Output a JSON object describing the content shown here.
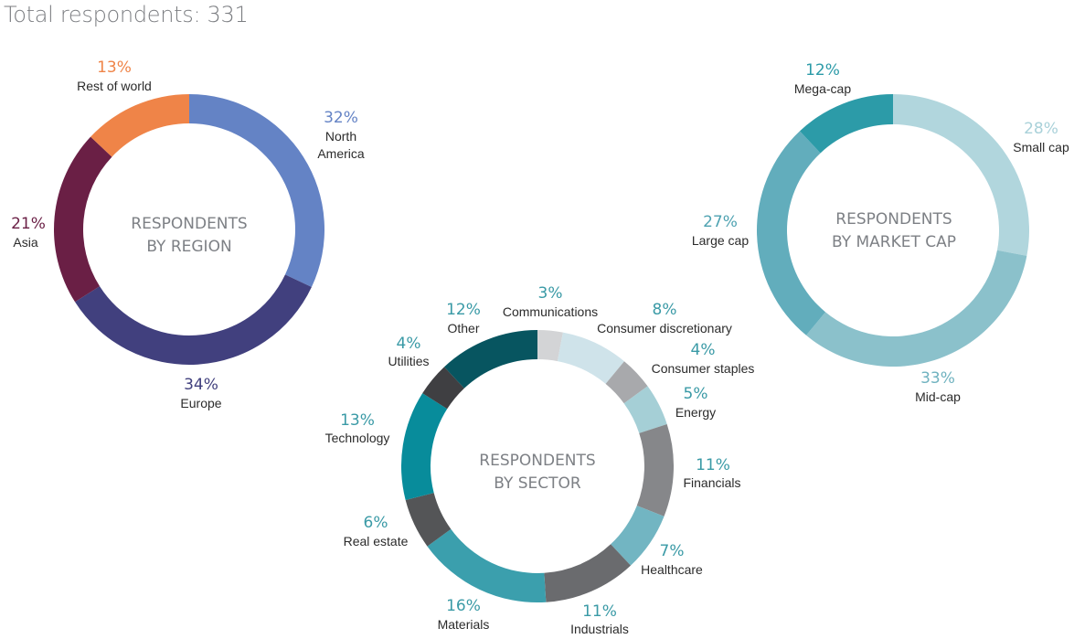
{
  "header": {
    "total_label": "Total respondents: 331"
  },
  "chart_data": [
    {
      "type": "pie",
      "title": "RESPONDENTS BY REGION",
      "title_lines": [
        "RESPONDENTS",
        "BY REGION"
      ],
      "slices": [
        {
          "label": "North America",
          "label_lines": [
            "North",
            "America"
          ],
          "value": 32,
          "value_label": "32%",
          "color": "#6483c5",
          "label_color": "#6483c5"
        },
        {
          "label": "Europe",
          "label_lines": [
            "Europe"
          ],
          "value": 34,
          "value_label": "34%",
          "color": "#41407e",
          "label_color": "#41407e"
        },
        {
          "label": "Asia",
          "label_lines": [
            "Asia"
          ],
          "value": 21,
          "value_label": "21%",
          "color": "#6a1f45",
          "label_color": "#6a1f45"
        },
        {
          "label": "Rest of world",
          "label_lines": [
            "Rest of world"
          ],
          "value": 13,
          "value_label": "13%",
          "color": "#ef8448",
          "label_color": "#ef8448"
        }
      ]
    },
    {
      "type": "pie",
      "title": "RESPONDENTS BY SECTOR",
      "title_lines": [
        "RESPONDENTS",
        "BY SECTOR"
      ],
      "slices": [
        {
          "label": "Communications",
          "label_lines": [
            "Communications"
          ],
          "value": 3,
          "value_label": "3%",
          "color": "#d3d4d6",
          "label_color": "#3a9aa6"
        },
        {
          "label": "Consumer discretionary",
          "label_lines": [
            "Consumer discretionary"
          ],
          "value": 8,
          "value_label": "8%",
          "color": "#cfe3ea",
          "label_color": "#3a9aa6"
        },
        {
          "label": "Consumer staples",
          "label_lines": [
            "Consumer staples"
          ],
          "value": 4,
          "value_label": "4%",
          "color": "#a8a9ac",
          "label_color": "#3a9aa6"
        },
        {
          "label": "Energy",
          "label_lines": [
            "Energy"
          ],
          "value": 5,
          "value_label": "5%",
          "color": "#a5cfd6",
          "label_color": "#3a9aa6"
        },
        {
          "label": "Financials",
          "label_lines": [
            "Financials"
          ],
          "value": 11,
          "value_label": "11%",
          "color": "#86878a",
          "label_color": "#3a9aa6"
        },
        {
          "label": "Healthcare",
          "label_lines": [
            "Healthcare"
          ],
          "value": 7,
          "value_label": "7%",
          "color": "#72b5c2",
          "label_color": "#3a9aa6"
        },
        {
          "label": "Industrials",
          "label_lines": [
            "Industrials"
          ],
          "value": 11,
          "value_label": "11%",
          "color": "#6a6b6e",
          "label_color": "#3a9aa6"
        },
        {
          "label": "Materials",
          "label_lines": [
            "Materials"
          ],
          "value": 16,
          "value_label": "16%",
          "color": "#3b9fad",
          "label_color": "#3a9aa6"
        },
        {
          "label": "Real estate",
          "label_lines": [
            "Real estate"
          ],
          "value": 6,
          "value_label": "6%",
          "color": "#545557",
          "label_color": "#3a9aa6"
        },
        {
          "label": "Technology",
          "label_lines": [
            "Technology"
          ],
          "value": 13,
          "value_label": "13%",
          "color": "#088c9b",
          "label_color": "#3a9aa6"
        },
        {
          "label": "Utilities",
          "label_lines": [
            "Utilities"
          ],
          "value": 4,
          "value_label": "4%",
          "color": "#3f3f42",
          "label_color": "#3a9aa6"
        },
        {
          "label": "Other",
          "label_lines": [
            "Other"
          ],
          "value": 12,
          "value_label": "12%",
          "color": "#075560",
          "label_color": "#3a9aa6"
        }
      ]
    },
    {
      "type": "pie",
      "title": "RESPONDENTS BY MARKET CAP",
      "title_lines": [
        "RESPONDENTS",
        "BY MARKET CAP"
      ],
      "slices": [
        {
          "label": "Small cap",
          "label_lines": [
            "Small cap"
          ],
          "value": 28,
          "value_label": "28%",
          "color": "#b1d6dd",
          "label_color": "#a9d1d9"
        },
        {
          "label": "Mid-cap",
          "label_lines": [
            "Mid-cap"
          ],
          "value": 33,
          "value_label": "33%",
          "color": "#8bc1cb",
          "label_color": "#6fb2bf"
        },
        {
          "label": "Large cap",
          "label_lines": [
            "Large cap"
          ],
          "value": 27,
          "value_label": "27%",
          "color": "#62adbc",
          "label_color": "#4ea2b1"
        },
        {
          "label": "Mega-cap",
          "label_lines": [
            "Mega-cap"
          ],
          "value": 12,
          "value_label": "12%",
          "color": "#2c9ba8",
          "label_color": "#2c9ba8"
        }
      ]
    }
  ]
}
